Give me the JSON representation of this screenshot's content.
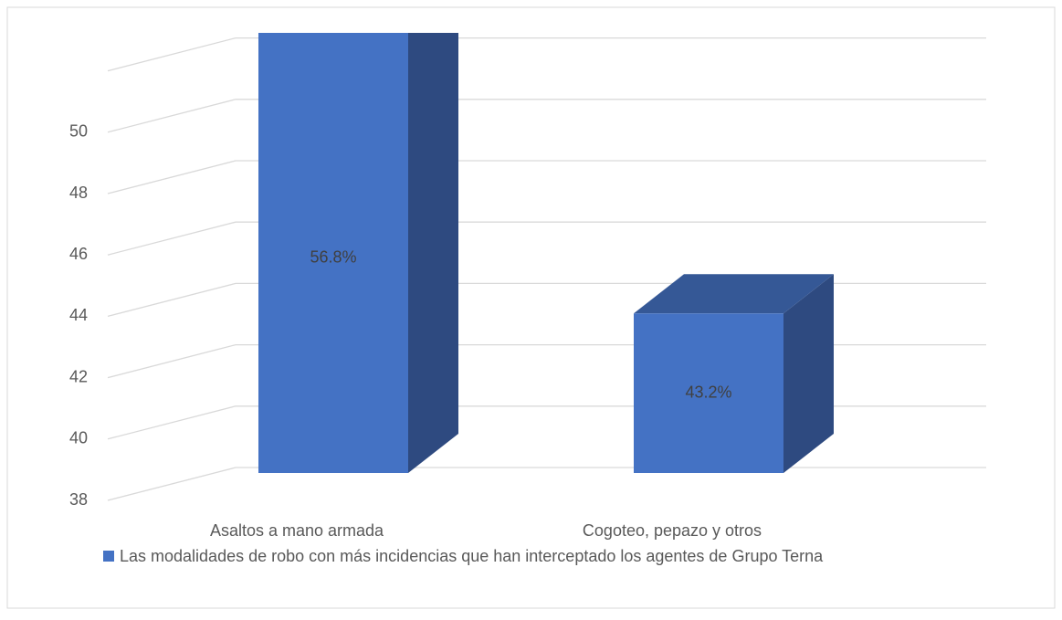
{
  "chart_data": {
    "type": "bar3d",
    "categories": [
      "Asaltos a mano armada",
      "Cogoteo, pepazo y otros"
    ],
    "series": [
      {
        "name": "Las modalidades de robo con más incidencias que han interceptado los agentes de Grupo Terna",
        "color": "#4472c4",
        "values": [
          56.8,
          43.2
        ],
        "value_labels": [
          "56.8%",
          "43.2%"
        ]
      }
    ],
    "ylim": [
      38,
      52
    ],
    "yticks": [
      38,
      40,
      42,
      44,
      46,
      48,
      50
    ],
    "grid": true,
    "legend": "bottom"
  }
}
